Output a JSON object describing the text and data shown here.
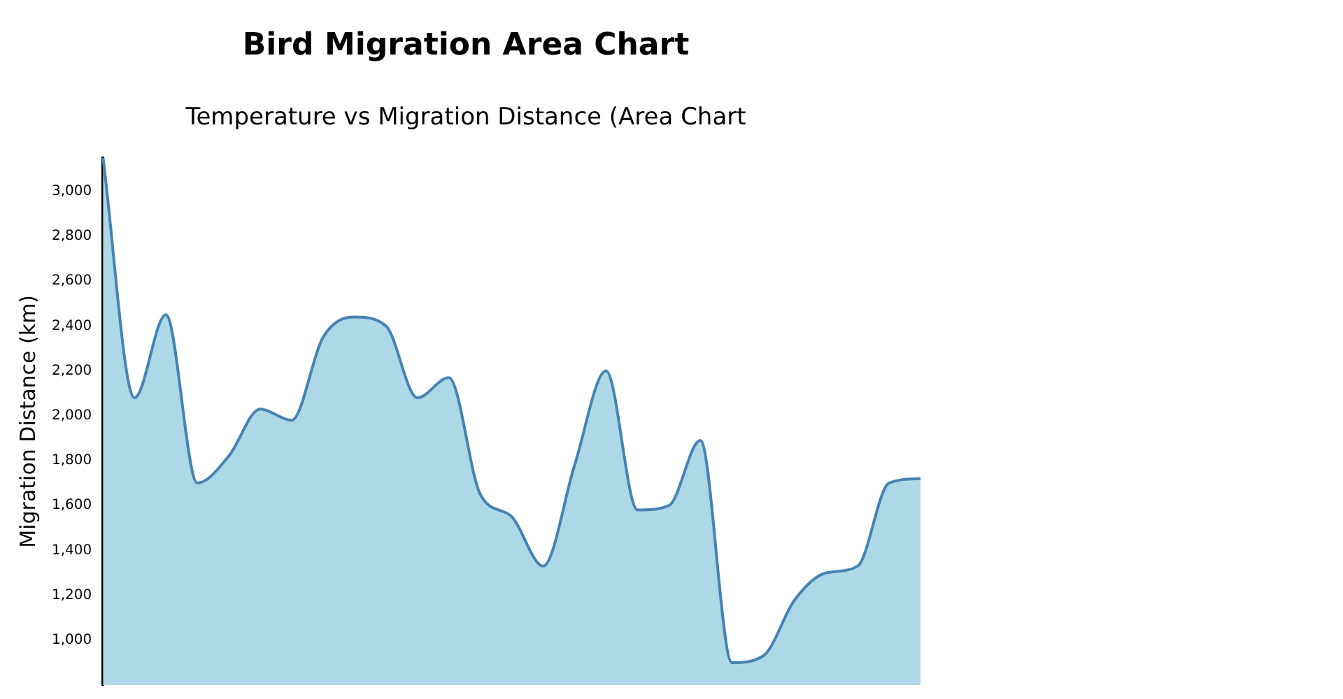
{
  "chart_data": {
    "type": "area",
    "title": "Bird Migration Area Chart",
    "subtitle": "Temperature vs Migration Distance (Area Chart",
    "ylabel": "Migration Distance (km)",
    "categories": [
      null,
      null,
      null,
      null,
      null,
      null,
      null,
      null,
      null,
      null,
      null,
      null,
      null,
      null,
      null,
      null,
      null,
      null,
      null,
      null,
      null,
      null,
      null,
      null,
      null,
      null,
      null
    ],
    "series": [
      {
        "color": "#4682b4",
        "values": [
          3150,
          2080,
          2450,
          1700,
          1820,
          2030,
          1980,
          2350,
          2440,
          2400,
          2080,
          2170,
          1650,
          1550,
          1330,
          1780,
          2200,
          1580,
          1600,
          1890,
          900,
          930,
          1180,
          1300,
          1330,
          1700,
          1720
        ]
      }
    ],
    "ylim": [
      800,
      3150
    ],
    "yticks": [
      {
        "value": 1000,
        "label": "1,000"
      },
      {
        "value": 1200,
        "label": "1,200"
      },
      {
        "value": 1400,
        "label": "1,400"
      },
      {
        "value": 1600,
        "label": "1,600"
      },
      {
        "value": 1800,
        "label": "1,800"
      },
      {
        "value": 2000,
        "label": "2,000"
      },
      {
        "value": 2200,
        "label": "2,200"
      },
      {
        "value": 2400,
        "label": "2,400"
      },
      {
        "value": 2600,
        "label": "2,600"
      },
      {
        "value": 2800,
        "label": "2,800"
      },
      {
        "value": 3000,
        "label": "3,000"
      }
    ],
    "tick_labels": "y",
    "grid": false,
    "legend": false,
    "marker": "none"
  }
}
